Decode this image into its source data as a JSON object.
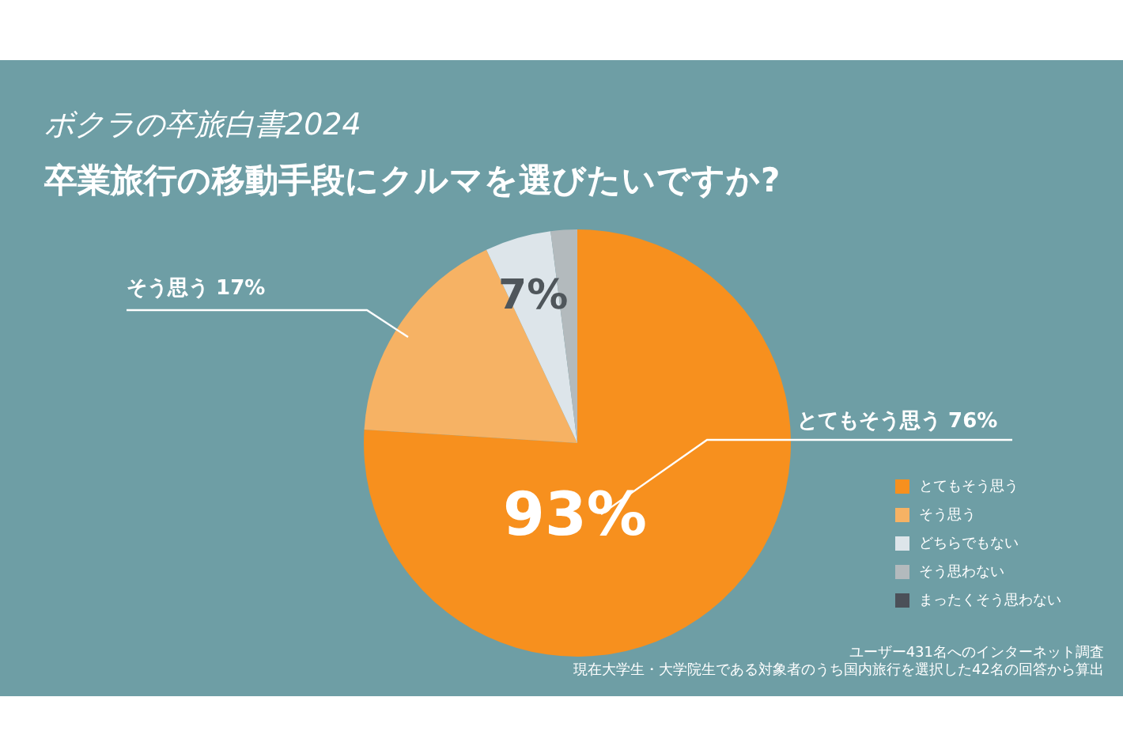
{
  "chart_data": {
    "type": "pie",
    "title": "ボクラの卒旅白書2024",
    "subtitle": "卒業旅行の移動手段にクルマを選びたいですか?",
    "categories": [
      "とてもそう思う",
      "そう思う",
      "どちらでもない",
      "そう思わない",
      "まったくそう思わない"
    ],
    "values": [
      76,
      17,
      5,
      2,
      0
    ],
    "colors": [
      "#f7901e",
      "#f6b264",
      "#dde5ea",
      "#b3babd",
      "#4b5058"
    ],
    "legend": "bottom right",
    "annotations": [
      "そう思う 17%",
      "とてもそう思う 76%",
      "93%",
      "7%",
      "ユーザー431名へのインターネット調査",
      "現在大学生・大学院生である対象者のうち国内旅行を選択した42名の回答から算出"
    ]
  }
}
